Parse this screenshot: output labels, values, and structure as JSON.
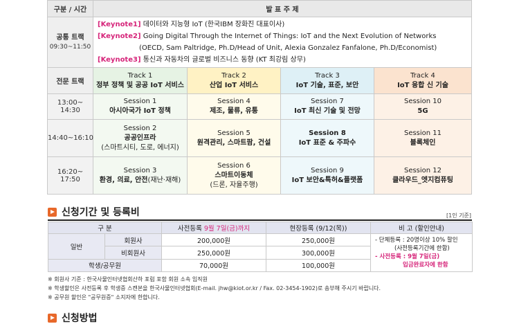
{
  "program": {
    "headers": {
      "division": "구분 / 시간",
      "presentation": "발 표 주 제"
    },
    "common": {
      "label": "공통 트랙",
      "time": "09:30~11:50",
      "keynotes": [
        {
          "tag": "[Keynote1]",
          "text": "데이터와 지능형 IoT (한국IBM 장화진 대표이사)"
        },
        {
          "tag": "[Keynote2]",
          "text": "Going Digital Through the Internet of Things: IoT and the Next Evolution of Networks"
        },
        {
          "tag": "",
          "text": "(OECD, Sam Paltridge, Ph.D/Head of Unit, Alexia Gonzalez Fanfalone, Ph.D/Economist)"
        },
        {
          "tag": "[Keynote3]",
          "text": "통신과 자동차의 글로벌 비즈니스 동향 (KT 최강림 상무)"
        }
      ]
    },
    "specialized_label": "전문 트랙",
    "tracks": [
      {
        "num": "Track 1",
        "name": "정부 정책 및 공공 IoT 서비스"
      },
      {
        "num": "Track 2",
        "name": "산업 IoT 서비스"
      },
      {
        "num": "Track 3",
        "name": "IoT 기술, 표준, 보안"
      },
      {
        "num": "Track 4",
        "name": "IoT 융합 신 기술"
      }
    ],
    "rows": [
      {
        "time": "13:00~ 14:30",
        "sessions": [
          {
            "num": "Session 1",
            "name": "아시아국가 IoT 정책",
            "sub": ""
          },
          {
            "num": "Session 4",
            "name": "제조, 물류, 유통",
            "sub": ""
          },
          {
            "num": "Session 7",
            "name": "IoT 최신 기술 및 전망",
            "sub": ""
          },
          {
            "num": "Session 10",
            "name": "5G",
            "sub": ""
          }
        ]
      },
      {
        "time": "14:40~16:10",
        "sessions": [
          {
            "num": "Session 2",
            "name": "공공인프라",
            "sub": "(스마트시티, 도로, 에너지)"
          },
          {
            "num": "Session 5",
            "name": "원격관리, 스마트팜, 건설",
            "sub": ""
          },
          {
            "num": "Session 8",
            "name": "IoT 표준 & 주파수",
            "sub": ""
          },
          {
            "num": "Session 11",
            "name": "블록체인",
            "sub": ""
          }
        ]
      },
      {
        "time": "16:20~ 17:50",
        "sessions": [
          {
            "num": "Session 3",
            "name": "환경, 의료, 안전",
            "name_suffix": "(재난·재해)",
            "sub": ""
          },
          {
            "num": "Session 6",
            "name": "스마트이동체",
            "sub": "(드론, 자율주행)"
          },
          {
            "num": "Session 9",
            "name": "IoT 보안&특허&플랫폼",
            "sub": ""
          },
          {
            "num": "Session 12",
            "name": "클라우드_엣지컴퓨팅",
            "sub": ""
          }
        ]
      }
    ]
  },
  "registration": {
    "title": "신청기간 및 등록비",
    "unit_note": "[1인 기준]",
    "headers": {
      "category": "구 분",
      "early": "사전등록",
      "early_highlight": "9월 7일(금)까지",
      "onsite": "현장등록 (9/12(목))",
      "remarks": "비 고 (할인안내)"
    },
    "general_label": "일반",
    "rows": [
      {
        "label": "회원사",
        "early": "200,000원",
        "onsite": "250,000원"
      },
      {
        "label": "비회원사",
        "early": "250,000원",
        "onsite": "300,000원"
      },
      {
        "label": "학생/공무원",
        "early": "70,000원",
        "onsite": "100,000원"
      }
    ],
    "remarks": {
      "line1": "- 단체등록 : 20명이상 10% 할인",
      "line2": "(사전등록기간에 한함)",
      "line3": "- 사전등록 : 9월 7일(금)",
      "line4": "입금완료자에 한함"
    }
  },
  "footnotes": [
    "※ 회원사 기준 : 한국사물인터넷협회산하 포럼 포함 회원 소속 임직원",
    "※ 학생할인은 사전등록 후 학생증 스캔본을 한국사물인터넷협회(E-mail. jhw@kiot.or.kr / Fax. 02-3454-1902)로 송부해 주시기 바랍니다.",
    "※ 공무원 할인은 \"공무원증\" 소지자에 한합니다."
  ],
  "method": {
    "title": "신청방법"
  },
  "colors": {
    "accent": "#e8682a",
    "keynote": "#d6257a",
    "track1": "#e6f3e4",
    "track2": "#fff2c4",
    "track3": "#def0f6",
    "track4": "#fbe3cf"
  }
}
